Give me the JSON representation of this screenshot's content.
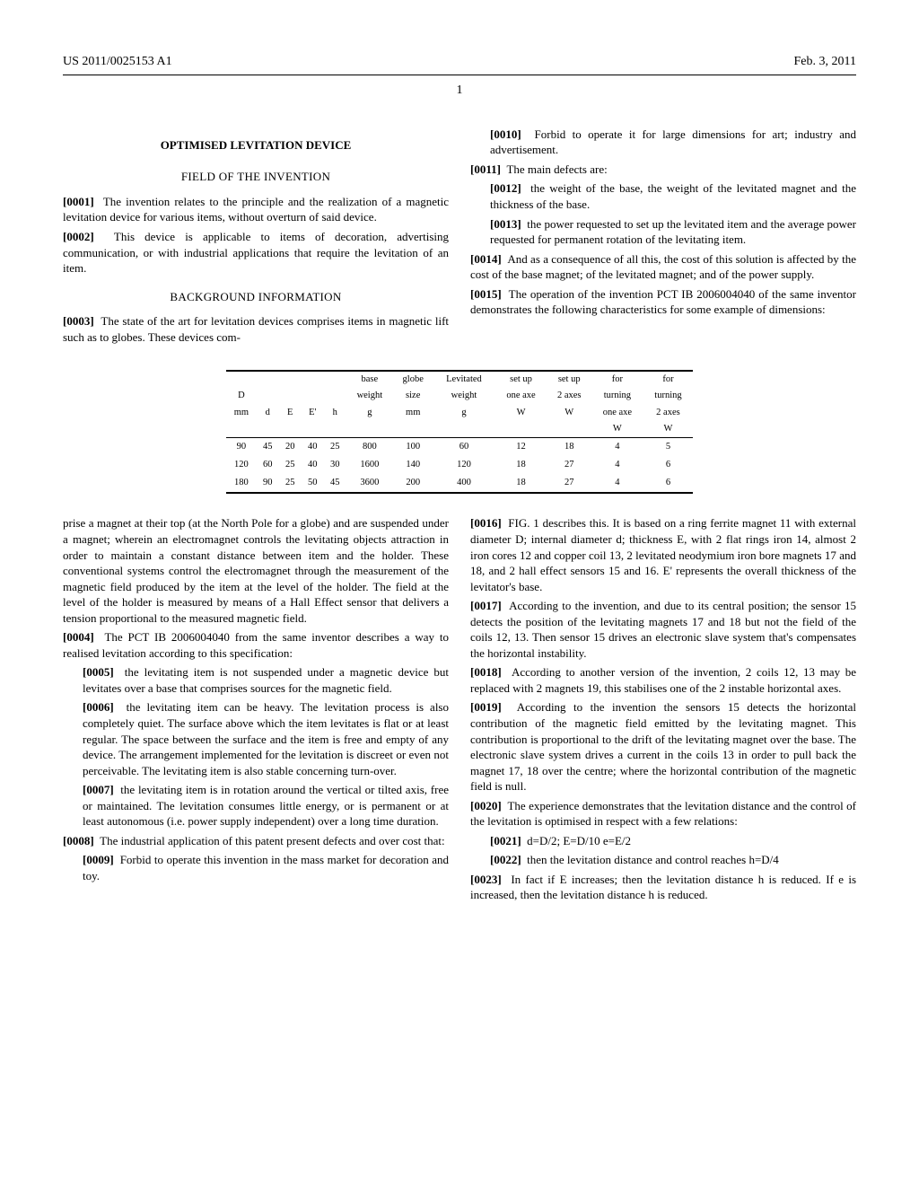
{
  "header": {
    "pub_number": "US 2011/0025153 A1",
    "pub_date": "Feb. 3, 2011"
  },
  "page_number": "1",
  "title": "OPTIMISED LEVITATION DEVICE",
  "sections": {
    "field_heading": "FIELD OF THE INVENTION",
    "background_heading": "BACKGROUND INFORMATION"
  },
  "paragraphs": {
    "p0001_num": "[0001]",
    "p0001": "The invention relates to the principle and the realization of a magnetic levitation device for various items, without overturn of said device.",
    "p0002_num": "[0002]",
    "p0002": "This device is applicable to items of decoration, advertising communication, or with industrial applications that require the levitation of an item.",
    "p0003_num": "[0003]",
    "p0003": "The state of the art for levitation devices comprises items in magnetic lift such as to globes. These devices com-",
    "p0003b": "prise a magnet at their top (at the North Pole for a globe) and are suspended under a magnet; wherein an electromagnet controls the levitating objects attraction in order to maintain a constant distance between item and the holder. These conventional systems control the electromagnet through the measurement of the magnetic field produced by the item at the level of the holder. The field at the level of the holder is measured by means of a Hall Effect sensor that delivers a tension proportional to the measured magnetic field.",
    "p0004_num": "[0004]",
    "p0004": "The PCT IB 2006004040 from the same inventor describes a way to realised levitation according to this specification:",
    "p0005_num": "[0005]",
    "p0005": "the levitating item is not suspended under a magnetic device but levitates over a base that comprises sources for the magnetic field.",
    "p0006_num": "[0006]",
    "p0006": "the levitating item can be heavy. The levitation process is also completely quiet. The surface above which the item levitates is flat or at least regular. The space between the surface and the item is free and empty of any device. The arrangement implemented for the levitation is discreet or even not perceivable. The levitating item is also stable concerning turn-over.",
    "p0007_num": "[0007]",
    "p0007": "the levitating item is in rotation around the vertical or tilted axis, free or maintained. The levitation consumes little energy, or is permanent or at least autonomous (i.e. power supply independent) over a long time duration.",
    "p0008_num": "[0008]",
    "p0008": "The industrial application of this patent present defects and over cost that:",
    "p0009_num": "[0009]",
    "p0009": "Forbid to operate this invention in the mass market for decoration and toy.",
    "p0010_num": "[0010]",
    "p0010": "Forbid to operate it for large dimensions for art; industry and advertisement.",
    "p0011_num": "[0011]",
    "p0011": "The main defects are:",
    "p0012_num": "[0012]",
    "p0012": "the weight of the base, the weight of the levitated magnet and the thickness of the base.",
    "p0013_num": "[0013]",
    "p0013": "the power requested to set up the levitated item and the average power requested for permanent rotation of the levitating item.",
    "p0014_num": "[0014]",
    "p0014": "And as a consequence of all this, the cost of this solution is affected by the cost of the base magnet; of the levitated magnet; and of the power supply.",
    "p0015_num": "[0015]",
    "p0015": "The operation of the invention PCT IB 2006004040 of the same inventor demonstrates the following characteristics for some example of dimensions:",
    "p0016_num": "[0016]",
    "p0016": "FIG. 1 describes this. It is based on a ring ferrite magnet 11 with external diameter D; internal diameter d; thickness E, with 2 flat rings iron 14, almost 2 iron cores 12 and copper coil 13, 2 levitated neodymium iron bore magnets 17 and 18, and 2 hall effect sensors 15 and 16. E' represents the overall thickness of the levitator's base.",
    "p0017_num": "[0017]",
    "p0017": "According to the invention, and due to its central position; the sensor 15 detects the position of the levitating magnets 17 and 18 but not the field of the coils 12, 13. Then sensor 15 drives an electronic slave system that's compensates the horizontal instability.",
    "p0018_num": "[0018]",
    "p0018": "According to another version of the invention, 2 coils 12, 13 may be replaced with 2 magnets 19, this stabilises one of the 2 instable horizontal axes.",
    "p0019_num": "[0019]",
    "p0019": "According to the invention the sensors 15 detects the horizontal contribution of the magnetic field emitted by the levitating magnet. This contribution is proportional to the drift of the levitating magnet over the base. The electronic slave system drives a current in the coils 13 in order to pull back the magnet 17, 18 over the centre; where the horizontal contribution of the magnetic field is null.",
    "p0020_num": "[0020]",
    "p0020": "The experience demonstrates that the levitation distance and the control of the levitation is optimised in respect with a few relations:",
    "p0021_num": "[0021]",
    "p0021": "d=D/2; E=D/10 e=E/2",
    "p0022_num": "[0022]",
    "p0022": "then the levitation distance and control reaches h=D/4",
    "p0023_num": "[0023]",
    "p0023": "In fact if E increases; then the levitation distance h is reduced. If e is increased, then the levitation distance h is reduced."
  },
  "table": {
    "type": "table",
    "columns": [
      {
        "h1": "",
        "h2": "D",
        "h3": "mm"
      },
      {
        "h1": "",
        "h2": "",
        "h3": "d"
      },
      {
        "h1": "",
        "h2": "",
        "h3": "E"
      },
      {
        "h1": "",
        "h2": "",
        "h3": "E'"
      },
      {
        "h1": "",
        "h2": "",
        "h3": "h"
      },
      {
        "h1": "base",
        "h2": "weight",
        "h3": "g"
      },
      {
        "h1": "globe",
        "h2": "size",
        "h3": "mm"
      },
      {
        "h1": "Levitated",
        "h2": "weight",
        "h3": "g"
      },
      {
        "h1": "set up",
        "h2": "one axe",
        "h3": "W"
      },
      {
        "h1": "set up",
        "h2": "2 axes",
        "h3": "W"
      },
      {
        "h1": "for",
        "h2": "turning",
        "h3": "one axe",
        "h4": "W"
      },
      {
        "h1": "for",
        "h2": "turning",
        "h3": "2 axes",
        "h4": "W"
      }
    ],
    "head_rows": [
      [
        "",
        "",
        "",
        "",
        "",
        "base",
        "globe",
        "Levitated",
        "set up",
        "set up",
        "for",
        "for"
      ],
      [
        "D",
        "",
        "",
        "",
        "",
        "weight",
        "size",
        "weight",
        "one axe",
        "2 axes",
        "turning",
        "turning"
      ],
      [
        "mm",
        "d",
        "E",
        "E'",
        "h",
        "g",
        "mm",
        "g",
        "W",
        "W",
        "one axe",
        "2 axes"
      ],
      [
        "",
        "",
        "",
        "",
        "",
        "",
        "",
        "",
        "",
        "",
        "W",
        "W"
      ]
    ],
    "rows": [
      [
        "90",
        "45",
        "20",
        "40",
        "25",
        "800",
        "100",
        "60",
        "12",
        "18",
        "4",
        "5"
      ],
      [
        "120",
        "60",
        "25",
        "40",
        "30",
        "1600",
        "140",
        "120",
        "18",
        "27",
        "4",
        "6"
      ],
      [
        "180",
        "90",
        "25",
        "50",
        "45",
        "3600",
        "200",
        "400",
        "18",
        "27",
        "4",
        "6"
      ]
    ]
  }
}
